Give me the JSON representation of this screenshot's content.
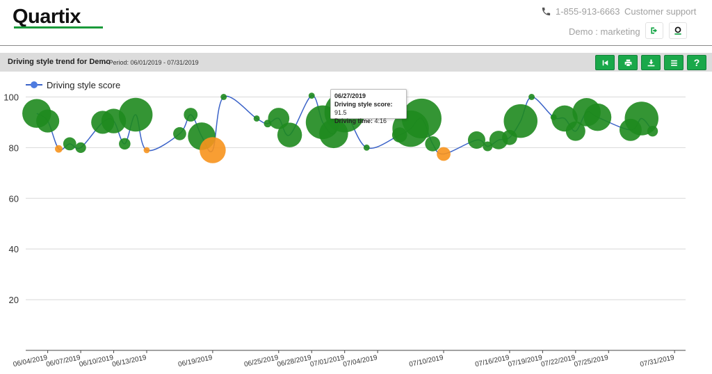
{
  "header": {
    "logo": "Quartix",
    "phone": "1-855-913-6663",
    "support_label": "Customer support",
    "account": "Demo : marketing",
    "icons": [
      "phone-icon",
      "logout-icon",
      "quartix-icon"
    ]
  },
  "toolbar": {
    "title": "Driving style trend for Demo",
    "period": "- Period: 06/01/2019  -  07/31/2019",
    "buttons": [
      "first-icon",
      "print-icon",
      "download-icon",
      "menu-icon",
      "help-icon"
    ],
    "help_label": "?"
  },
  "tooltip": {
    "date": "06/27/2019",
    "score_label": "Driving style score:",
    "score_value": "91.5",
    "time_label": "Driving time:",
    "time_value": "4:16"
  },
  "chart_data": {
    "type": "line",
    "legend": "Driving style score",
    "legend_position": "top-left",
    "ylim": [
      0,
      110
    ],
    "yticks": [
      20,
      40,
      60,
      80,
      100
    ],
    "xlim": [
      "2019-06-02",
      "2019-08-01"
    ],
    "grid": true,
    "xticks": [
      "06/04/2019",
      "06/07/2019",
      "06/10/2019",
      "06/13/2019",
      "06/19/2019",
      "06/25/2019",
      "06/28/2019",
      "07/01/2019",
      "07/04/2019",
      "07/10/2019",
      "07/16/2019",
      "07/19/2019",
      "07/22/2019",
      "07/25/2019",
      "07/31/2019"
    ],
    "colors": {
      "line": "#3a62c8",
      "good": "#1e8a1e",
      "warn": "#f7941d",
      "grid": "#d8d8d8"
    },
    "points": [
      {
        "date": "2019-06-03",
        "score": 93.5,
        "size": 2.2,
        "status": "good"
      },
      {
        "date": "2019-06-04",
        "score": 90.5,
        "size": 1.4,
        "status": "good"
      },
      {
        "date": "2019-06-05",
        "score": 79.5,
        "size": 0.15,
        "status": "warn"
      },
      {
        "date": "2019-06-06",
        "score": 81.5,
        "size": 0.45,
        "status": "good"
      },
      {
        "date": "2019-06-07",
        "score": 80.0,
        "size": 0.3,
        "status": "good"
      },
      {
        "date": "2019-06-09",
        "score": 90.0,
        "size": 1.4,
        "status": "good"
      },
      {
        "date": "2019-06-10",
        "score": 90.5,
        "size": 1.6,
        "status": "good"
      },
      {
        "date": "2019-06-11",
        "score": 81.5,
        "size": 0.35,
        "status": "good"
      },
      {
        "date": "2019-06-12",
        "score": 93.0,
        "size": 3.0,
        "status": "good"
      },
      {
        "date": "2019-06-13",
        "score": 79.0,
        "size": 0.1,
        "status": "warn"
      },
      {
        "date": "2019-06-16",
        "score": 85.5,
        "size": 0.45,
        "status": "good"
      },
      {
        "date": "2019-06-17",
        "score": 93.0,
        "size": 0.5,
        "status": "good"
      },
      {
        "date": "2019-06-18",
        "score": 84.5,
        "size": 2.0,
        "status": "good"
      },
      {
        "date": "2019-06-19",
        "score": 79.0,
        "size": 1.8,
        "status": "warn"
      },
      {
        "date": "2019-06-20",
        "score": 100.0,
        "size": 0.1,
        "status": "good"
      },
      {
        "date": "2019-06-23",
        "score": 91.5,
        "size": 0.1,
        "status": "good"
      },
      {
        "date": "2019-06-24",
        "score": 89.5,
        "size": 0.15,
        "status": "good"
      },
      {
        "date": "2019-06-25",
        "score": 91.5,
        "size": 1.2,
        "status": "good"
      },
      {
        "date": "2019-06-26",
        "score": 85.0,
        "size": 1.6,
        "status": "good"
      },
      {
        "date": "2019-06-28",
        "score": 100.5,
        "size": 0.1,
        "status": "good"
      },
      {
        "date": "2019-06-29",
        "score": 90.0,
        "size": 3.0,
        "status": "good"
      },
      {
        "date": "2019-06-30",
        "score": 85.5,
        "size": 2.2,
        "status": "good"
      },
      {
        "date": "2019-07-01",
        "score": 94.0,
        "size": 4.3,
        "status": "good"
      },
      {
        "date": "2019-07-03",
        "score": 80.0,
        "size": 0.1,
        "status": "good"
      },
      {
        "date": "2019-07-06",
        "score": 85.0,
        "size": 0.6,
        "status": "good"
      },
      {
        "date": "2019-07-07",
        "score": 87.5,
        "size": 3.5,
        "status": "good"
      },
      {
        "date": "2019-07-08",
        "score": 91.5,
        "size": 4.16,
        "status": "good"
      },
      {
        "date": "2019-07-09",
        "score": 81.5,
        "size": 0.6,
        "status": "good"
      },
      {
        "date": "2019-07-10",
        "score": 77.5,
        "size": 0.5,
        "status": "warn"
      },
      {
        "date": "2019-07-13",
        "score": 83.0,
        "size": 0.8,
        "status": "good"
      },
      {
        "date": "2019-07-14",
        "score": 80.5,
        "size": 0.25,
        "status": "good"
      },
      {
        "date": "2019-07-15",
        "score": 83.0,
        "size": 0.9,
        "status": "good"
      },
      {
        "date": "2019-07-16",
        "score": 84.0,
        "size": 0.6,
        "status": "good"
      },
      {
        "date": "2019-07-17",
        "score": 90.5,
        "size": 3.0,
        "status": "good"
      },
      {
        "date": "2019-07-18",
        "score": 100.0,
        "size": 0.1,
        "status": "good"
      },
      {
        "date": "2019-07-20",
        "score": 92.0,
        "size": 0.1,
        "status": "good"
      },
      {
        "date": "2019-07-21",
        "score": 91.5,
        "size": 1.8,
        "status": "good"
      },
      {
        "date": "2019-07-22",
        "score": 86.5,
        "size": 1.0,
        "status": "good"
      },
      {
        "date": "2019-07-23",
        "score": 94.0,
        "size": 2.1,
        "status": "good"
      },
      {
        "date": "2019-07-24",
        "score": 92.0,
        "size": 2.0,
        "status": "good"
      },
      {
        "date": "2019-07-27",
        "score": 87.0,
        "size": 1.3,
        "status": "good"
      },
      {
        "date": "2019-07-28",
        "score": 91.5,
        "size": 3.0,
        "status": "good"
      },
      {
        "date": "2019-07-29",
        "score": 86.5,
        "size": 0.3,
        "status": "good"
      }
    ]
  }
}
